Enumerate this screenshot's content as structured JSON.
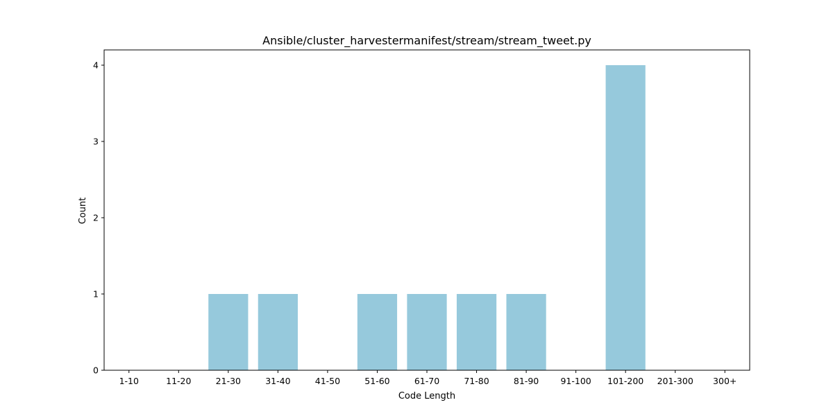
{
  "chart_data": {
    "type": "bar",
    "title": "Ansible/cluster_harvestermanifest/stream/stream_tweet.py",
    "xlabel": "Code Length",
    "ylabel": "Count",
    "categories": [
      "1-10",
      "11-20",
      "21-30",
      "31-40",
      "41-50",
      "51-60",
      "61-70",
      "71-80",
      "81-90",
      "91-100",
      "101-200",
      "201-300",
      "300+"
    ],
    "values": [
      0,
      0,
      1,
      1,
      0,
      1,
      1,
      1,
      1,
      0,
      4,
      0,
      0
    ],
    "ylim": [
      0,
      4.2
    ],
    "yticks": [
      0,
      1,
      2,
      3,
      4
    ],
    "bar_color": "#96c9dc",
    "grid": false,
    "legend": "none"
  }
}
